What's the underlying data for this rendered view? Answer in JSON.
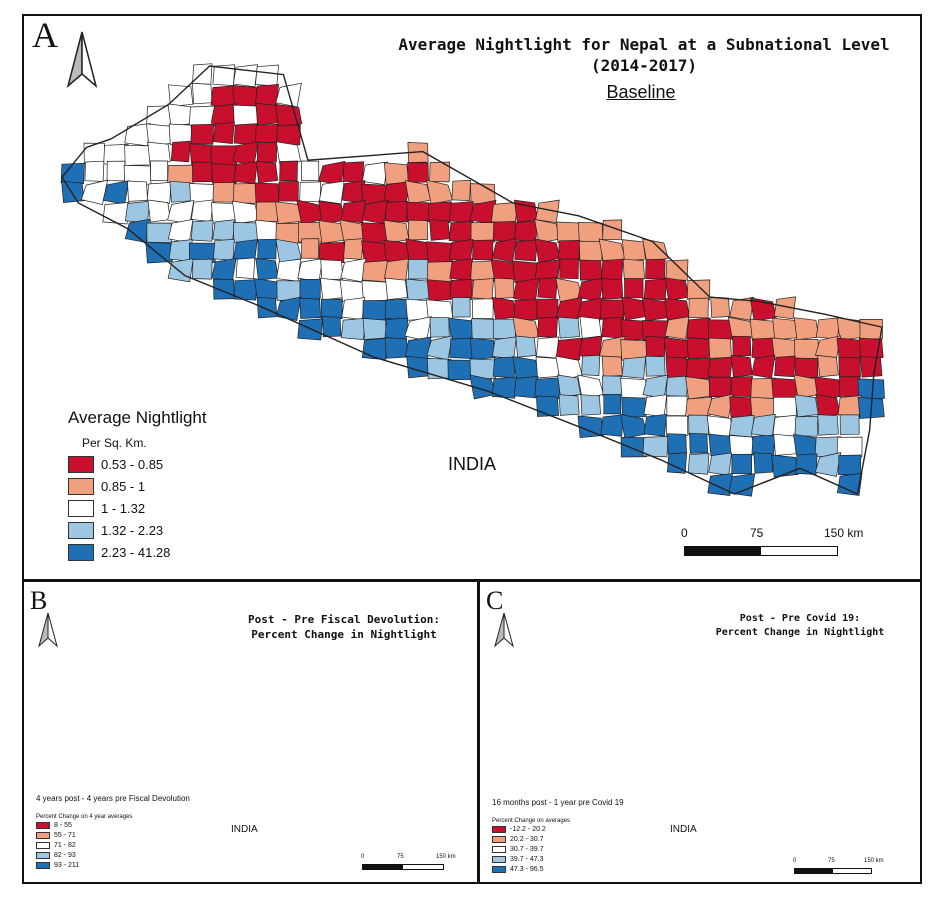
{
  "colors": {
    "class1": "#c8102e",
    "class2": "#f0a07e",
    "class3": "#ffffff",
    "class4": "#9dc6e2",
    "class5": "#1f6fb5",
    "border": "#222222"
  },
  "panel_a": {
    "label": "A",
    "title_line1": "Average Nightlight for Nepal at a Subnational Level",
    "title_line2": "(2014-2017)",
    "subtitle": "Baseline",
    "north_arrow": "north-arrow-icon",
    "legend_title": "Average Nightlight",
    "legend_subtitle": "Per Sq. Km.",
    "legend": [
      "0.53 - 0.85",
      "0.85 - 1",
      "1 - 1.32",
      "1.32 - 2.23",
      "2.23 - 41.28"
    ],
    "country_label": "INDIA",
    "scale": {
      "t0": "0",
      "t1": "75",
      "t2": "150 km"
    }
  },
  "panel_b": {
    "label": "B",
    "title_line1": "Post - Pre Fiscal Devolution:",
    "title_line2": "Percent Change in Nightlight",
    "north_arrow": "north-arrow-icon",
    "legend_title": "4 years post - 4 years pre Fiscal Devolution",
    "legend_subtitle": "Percent Change on 4 year averages",
    "legend": [
      "8 - 55",
      "55 - 71",
      "71 - 82",
      "82 - 93",
      "93 - 211"
    ],
    "country_label": "INDIA",
    "scale": {
      "t0": "0",
      "t1": "75",
      "t2": "150 km"
    }
  },
  "panel_c": {
    "label": "C",
    "title_line1": "Post - Pre Covid 19:",
    "title_line2": "Percent Change in Nightlight",
    "north_arrow": "north-arrow-icon",
    "legend_title": "16 months post - 1 year pre Covid 19",
    "legend_subtitle": "Percent Change on averages",
    "legend": [
      "-12.2 - 20.2",
      "20.2 - 30.7",
      "30.7 - 39.7",
      "39.7 - 47.3",
      "47.3 - 96.5"
    ],
    "country_label": "INDIA",
    "scale": {
      "t0": "0",
      "t1": "75",
      "t2": "150 km"
    }
  }
}
